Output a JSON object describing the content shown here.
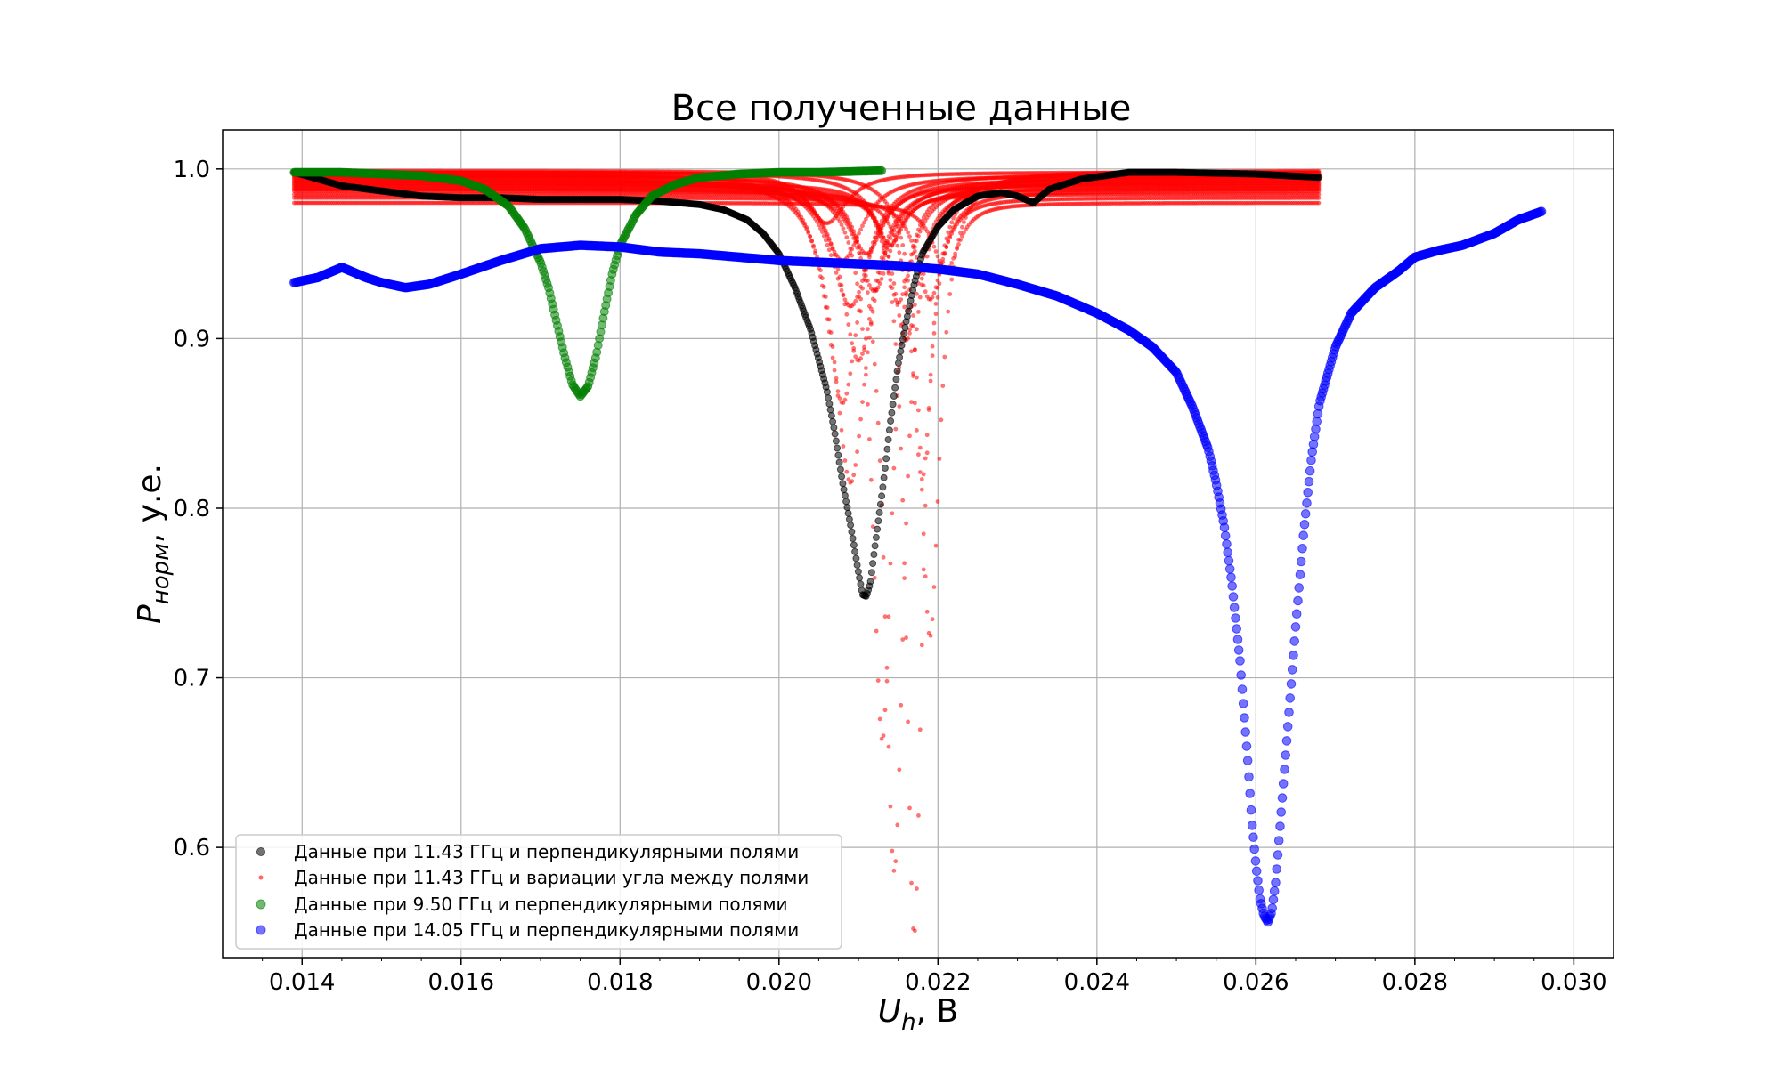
{
  "chart_data": {
    "type": "scatter",
    "title": "Все полученные данные",
    "xlabel": "U",
    "xlabel_sub": "h",
    "xlabel_unit": ", В",
    "ylabel": "P",
    "ylabel_sub": "норм",
    "ylabel_unit": ", у.е.",
    "xlim": [
      0.013,
      0.0305
    ],
    "ylim": [
      0.535,
      1.023
    ],
    "xticks": [
      0.014,
      0.016,
      0.018,
      0.02,
      0.022,
      0.024,
      0.026,
      0.028,
      0.03
    ],
    "xtick_labels": [
      "0.014",
      "0.016",
      "0.018",
      "0.020",
      "0.022",
      "0.024",
      "0.026",
      "0.028",
      "0.030"
    ],
    "yticks": [
      0.6,
      0.7,
      0.8,
      0.9,
      1.0
    ],
    "ytick_labels": [
      "0.6",
      "0.7",
      "0.8",
      "0.9",
      "1.0"
    ],
    "grid": true,
    "legend_position": "lower-left",
    "series": [
      {
        "name": "Данные при 11.43 ГГц и перпендикулярными полями",
        "color": "#000000",
        "marker_size": "medium",
        "points": [
          [
            0.0139,
            0.998
          ],
          [
            0.0145,
            0.99
          ],
          [
            0.015,
            0.987
          ],
          [
            0.0155,
            0.984
          ],
          [
            0.016,
            0.983
          ],
          [
            0.0165,
            0.983
          ],
          [
            0.017,
            0.982
          ],
          [
            0.0175,
            0.982
          ],
          [
            0.018,
            0.982
          ],
          [
            0.0185,
            0.981
          ],
          [
            0.019,
            0.979
          ],
          [
            0.0193,
            0.976
          ],
          [
            0.0196,
            0.97
          ],
          [
            0.0198,
            0.962
          ],
          [
            0.02,
            0.95
          ],
          [
            0.0202,
            0.93
          ],
          [
            0.0204,
            0.905
          ],
          [
            0.0206,
            0.87
          ],
          [
            0.0207,
            0.845
          ],
          [
            0.0208,
            0.815
          ],
          [
            0.0209,
            0.79
          ],
          [
            0.021,
            0.762
          ],
          [
            0.02105,
            0.749
          ],
          [
            0.0211,
            0.748
          ],
          [
            0.02115,
            0.756
          ],
          [
            0.0212,
            0.775
          ],
          [
            0.0213,
            0.81
          ],
          [
            0.0214,
            0.85
          ],
          [
            0.0215,
            0.885
          ],
          [
            0.0216,
            0.91
          ],
          [
            0.0217,
            0.932
          ],
          [
            0.0218,
            0.95
          ],
          [
            0.022,
            0.966
          ],
          [
            0.0222,
            0.976
          ],
          [
            0.0225,
            0.984
          ],
          [
            0.0228,
            0.986
          ],
          [
            0.023,
            0.984
          ],
          [
            0.0232,
            0.98
          ],
          [
            0.0234,
            0.988
          ],
          [
            0.0238,
            0.994
          ],
          [
            0.0244,
            0.998
          ],
          [
            0.025,
            0.998
          ],
          [
            0.026,
            0.997
          ],
          [
            0.0268,
            0.995
          ]
        ]
      },
      {
        "name": "Данные при 11.43 ГГц и вариации угла между полями",
        "color": "#ff0000",
        "marker_size": "small",
        "dips": [
          {
            "center": 0.0206,
            "depth": 0.03,
            "width": 0.0006,
            "base": 0.998
          },
          {
            "center": 0.0208,
            "depth": 0.05,
            "width": 0.0006,
            "base": 0.996
          },
          {
            "center": 0.0209,
            "depth": 0.075,
            "width": 0.0006,
            "base": 0.994
          },
          {
            "center": 0.021,
            "depth": 0.105,
            "width": 0.0005,
            "base": 0.992
          },
          {
            "center": 0.0208,
            "depth": 0.135,
            "width": 0.0005,
            "base": 0.997
          },
          {
            "center": 0.0209,
            "depth": 0.18,
            "width": 0.0005,
            "base": 0.995
          },
          {
            "center": 0.0211,
            "depth": 0.04,
            "width": 0.0005,
            "base": 0.99
          },
          {
            "center": 0.0212,
            "depth": 0.06,
            "width": 0.0005,
            "base": 0.988
          },
          {
            "center": 0.0213,
            "depth": 0.33,
            "width": 0.0003,
            "base": 0.993
          },
          {
            "center": 0.0214,
            "depth": 0.03,
            "width": 0.0004,
            "base": 0.985
          },
          {
            "center": 0.0215,
            "depth": 0.07,
            "width": 0.0004,
            "base": 0.991
          },
          {
            "center": 0.0216,
            "depth": 0.09,
            "width": 0.0004,
            "base": 0.989
          },
          {
            "center": 0.02145,
            "depth": 0.41,
            "width": 0.0003,
            "base": 0.996
          },
          {
            "center": 0.0217,
            "depth": 0.45,
            "width": 0.00025,
            "base": 0.998
          },
          {
            "center": 0.0218,
            "depth": 0.17,
            "width": 0.0003,
            "base": 0.987
          },
          {
            "center": 0.0219,
            "depth": 0.275,
            "width": 0.0003,
            "base": 0.999
          },
          {
            "center": 0.0219,
            "depth": 0.06,
            "width": 0.0004,
            "base": 0.983
          },
          {
            "center": 0.0221,
            "depth": 0.04,
            "width": 0.0004,
            "base": 0.98
          }
        ]
      },
      {
        "name": "Данные при 9.50 ГГц и перпендикулярными полями",
        "color": "#008000",
        "marker_size": "large",
        "points": [
          [
            0.0139,
            0.998
          ],
          [
            0.0145,
            0.998
          ],
          [
            0.015,
            0.997
          ],
          [
            0.0155,
            0.996
          ],
          [
            0.016,
            0.993
          ],
          [
            0.0163,
            0.988
          ],
          [
            0.0166,
            0.978
          ],
          [
            0.0168,
            0.965
          ],
          [
            0.017,
            0.945
          ],
          [
            0.0171,
            0.93
          ],
          [
            0.0172,
            0.91
          ],
          [
            0.0173,
            0.89
          ],
          [
            0.0174,
            0.873
          ],
          [
            0.0175,
            0.866
          ],
          [
            0.0176,
            0.872
          ],
          [
            0.0177,
            0.89
          ],
          [
            0.0178,
            0.915
          ],
          [
            0.0179,
            0.938
          ],
          [
            0.018,
            0.955
          ],
          [
            0.0182,
            0.973
          ],
          [
            0.0184,
            0.984
          ],
          [
            0.0187,
            0.991
          ],
          [
            0.019,
            0.995
          ],
          [
            0.0195,
            0.997
          ],
          [
            0.02,
            0.998
          ],
          [
            0.0205,
            0.998
          ],
          [
            0.0213,
            0.999
          ]
        ]
      },
      {
        "name": "Данные при 14.05 ГГц и перпендикулярными полями",
        "color": "#0000ff",
        "marker_size": "large",
        "points": [
          [
            0.0139,
            0.933
          ],
          [
            0.0142,
            0.936
          ],
          [
            0.0145,
            0.942
          ],
          [
            0.0148,
            0.936
          ],
          [
            0.015,
            0.933
          ],
          [
            0.0153,
            0.93
          ],
          [
            0.0156,
            0.932
          ],
          [
            0.016,
            0.938
          ],
          [
            0.0165,
            0.946
          ],
          [
            0.017,
            0.953
          ],
          [
            0.0175,
            0.955
          ],
          [
            0.018,
            0.954
          ],
          [
            0.0185,
            0.951
          ],
          [
            0.019,
            0.95
          ],
          [
            0.0195,
            0.948
          ],
          [
            0.02,
            0.946
          ],
          [
            0.0205,
            0.945
          ],
          [
            0.021,
            0.944
          ],
          [
            0.0215,
            0.943
          ],
          [
            0.022,
            0.941
          ],
          [
            0.0225,
            0.938
          ],
          [
            0.023,
            0.932
          ],
          [
            0.0235,
            0.925
          ],
          [
            0.024,
            0.915
          ],
          [
            0.0244,
            0.905
          ],
          [
            0.0247,
            0.895
          ],
          [
            0.025,
            0.88
          ],
          [
            0.0252,
            0.86
          ],
          [
            0.0254,
            0.835
          ],
          [
            0.0255,
            0.815
          ],
          [
            0.0256,
            0.79
          ],
          [
            0.0257,
            0.755
          ],
          [
            0.0258,
            0.71
          ],
          [
            0.02585,
            0.68
          ],
          [
            0.0259,
            0.65
          ],
          [
            0.02595,
            0.615
          ],
          [
            0.026,
            0.59
          ],
          [
            0.02605,
            0.57
          ],
          [
            0.0261,
            0.56
          ],
          [
            0.02615,
            0.556
          ],
          [
            0.0262,
            0.562
          ],
          [
            0.02625,
            0.58
          ],
          [
            0.0263,
            0.61
          ],
          [
            0.0264,
            0.67
          ],
          [
            0.0265,
            0.73
          ],
          [
            0.0266,
            0.785
          ],
          [
            0.0267,
            0.83
          ],
          [
            0.0268,
            0.862
          ],
          [
            0.027,
            0.895
          ],
          [
            0.0272,
            0.915
          ],
          [
            0.0275,
            0.93
          ],
          [
            0.0278,
            0.94
          ],
          [
            0.028,
            0.948
          ],
          [
            0.0283,
            0.952
          ],
          [
            0.0286,
            0.955
          ],
          [
            0.029,
            0.962
          ],
          [
            0.0293,
            0.97
          ],
          [
            0.0296,
            0.975
          ]
        ]
      }
    ]
  }
}
